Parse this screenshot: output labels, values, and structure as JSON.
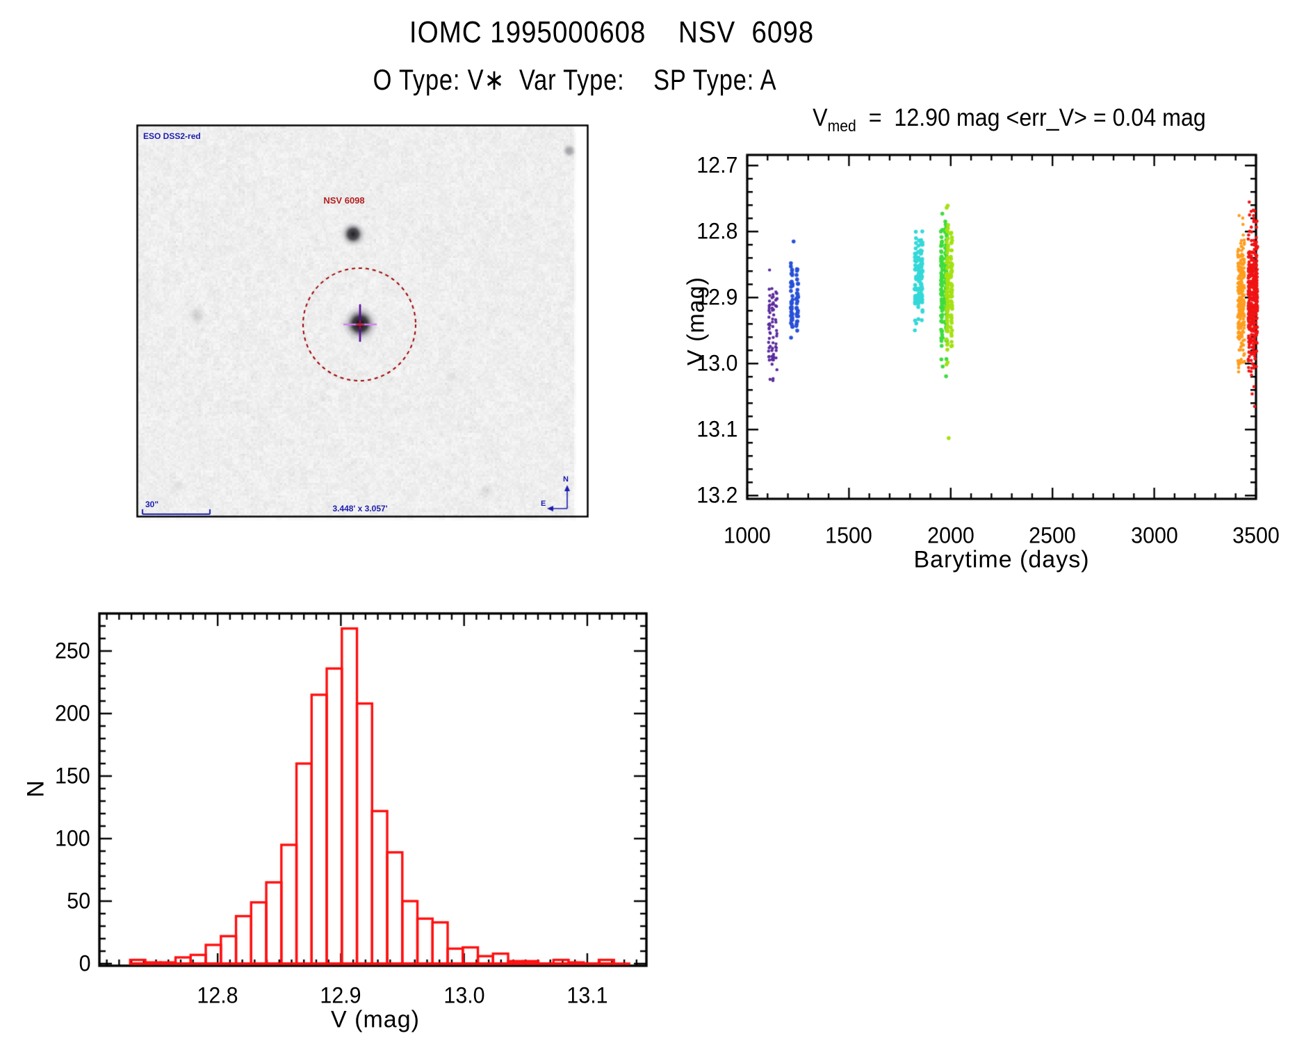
{
  "header": {
    "title": "IOMC 1995000608    NSV  6098",
    "subtitle": "O Type: V∗  Var Type:    SP Type: A"
  },
  "finder": {
    "survey_label": "ESO DSS2-red",
    "target_label": "NSV 6098",
    "scale_label": "30\"",
    "fov_label": "3.448' x 3.057'",
    "compass_north": "N",
    "compass_east": "E",
    "annotation_color": "#1c1cb0",
    "target_label_color": "#b42020",
    "circle_color": "#a00000",
    "crosshair_vertical_color": "#5a0aa0",
    "crosshair_horizontal_color": "#d77ef5"
  },
  "chart_data": [
    {
      "type": "scatter",
      "title": "V_med = 12.90 mag <err_V> = 0.04 mag",
      "title_parts": {
        "var": "V",
        "sub": "med",
        "rest": "  =  12.90 mag <err_V> = 0.04 mag"
      },
      "xlabel": "Barytime (days)",
      "ylabel": "V (mag)",
      "xlim": [
        1000,
        3500
      ],
      "ylim": [
        13.205,
        12.684
      ],
      "x_major_ticks": [
        1000,
        1500,
        2000,
        2500,
        3000,
        3500
      ],
      "x_minor_step": 100,
      "y_major_ticks": [
        12.7,
        12.8,
        12.9,
        13.0,
        13.1,
        13.2
      ],
      "y_minor_step": 0.02,
      "grid": false,
      "legend": "none",
      "clusters": [
        {
          "name": "epoch-1-purple",
          "color": "#5b2c9e",
          "x_min": 1109,
          "x_max": 1143,
          "cols": 3,
          "n": 75,
          "v_mean": 12.952,
          "v_sigma": 0.042,
          "v_min": 12.853,
          "v_max": 13.045,
          "r": 2.2
        },
        {
          "name": "epoch-2-blue",
          "color": "#2851d8",
          "x_min": 1219,
          "x_max": 1246,
          "cols": 2,
          "n": 75,
          "v_mean": 12.905,
          "v_sigma": 0.03,
          "v_min": 12.843,
          "v_max": 12.975,
          "r": 2.8
        },
        {
          "name": "epoch-3-cyan",
          "color": "#35d8d8",
          "x_min": 1827,
          "x_max": 1857,
          "cols": 3,
          "n": 130,
          "v_mean": 12.872,
          "v_sigma": 0.036,
          "v_min": 12.797,
          "v_max": 12.972,
          "r": 2.8
        },
        {
          "name": "epoch-4-green",
          "color": "#3fdc3f",
          "x_min": 1956,
          "x_max": 1977,
          "cols": 2,
          "n": 170,
          "v_mean": 12.878,
          "v_sigma": 0.05,
          "v_min": 12.725,
          "v_max": 13.03,
          "r": 2.8
        },
        {
          "name": "epoch-4-chartreuse",
          "color": "#a4e112",
          "x_min": 1983,
          "x_max": 2003,
          "cols": 2,
          "n": 130,
          "v_mean": 12.893,
          "v_sigma": 0.048,
          "v_min": 12.76,
          "v_max": 13.025,
          "r": 2.8
        },
        {
          "name": "epoch-5-orange",
          "color": "#ff9d1e",
          "x_min": 3415,
          "x_max": 3439,
          "cols": 3,
          "n": 260,
          "v_mean": 12.9,
          "v_sigma": 0.05,
          "v_min": 12.755,
          "v_max": 13.04,
          "r": 2.3
        },
        {
          "name": "epoch-6-red",
          "color": "#f01414",
          "x_min": 3466,
          "x_max": 3503,
          "cols": 4,
          "n": 400,
          "v_mean": 12.9,
          "v_sigma": 0.055,
          "v_min": 12.73,
          "v_max": 13.02,
          "r": 2.3
        }
      ],
      "outliers": [
        {
          "color": "#2851d8",
          "x": 1228,
          "v": 12.815,
          "r": 2.8
        },
        {
          "color": "#a4e112",
          "x": 1990,
          "v": 13.113,
          "r": 2.8
        },
        {
          "color": "#f01414",
          "x": 3490,
          "v": 13.035,
          "r": 2.3
        },
        {
          "color": "#f01414",
          "x": 3481,
          "v": 13.046,
          "r": 2.3
        },
        {
          "color": "#f01414",
          "x": 3493,
          "v": 13.065,
          "r": 2.3
        }
      ]
    },
    {
      "type": "bar",
      "title": "",
      "xlabel": "V (mag)",
      "ylabel": "N",
      "bar_color": "#ff1010",
      "bin_start": 12.729,
      "bin_width": 0.01227,
      "counts": [
        3,
        1,
        1,
        5,
        7,
        15,
        22,
        38,
        49,
        65,
        95,
        160,
        215,
        236,
        268,
        208,
        122,
        89,
        50,
        36,
        33,
        12,
        13,
        6,
        8,
        2,
        2,
        0,
        3,
        1,
        0,
        3
      ],
      "xlim": [
        12.704,
        13.148
      ],
      "ylim": [
        0,
        280
      ],
      "x_major_ticks": [
        12.8,
        12.9,
        13.0,
        13.1
      ],
      "x_minor_step": 0.01,
      "y_major_ticks": [
        0,
        50,
        100,
        150,
        200,
        250
      ],
      "y_minor_step": 10,
      "baseline_extend_to": 13.135,
      "grid": false
    }
  ]
}
